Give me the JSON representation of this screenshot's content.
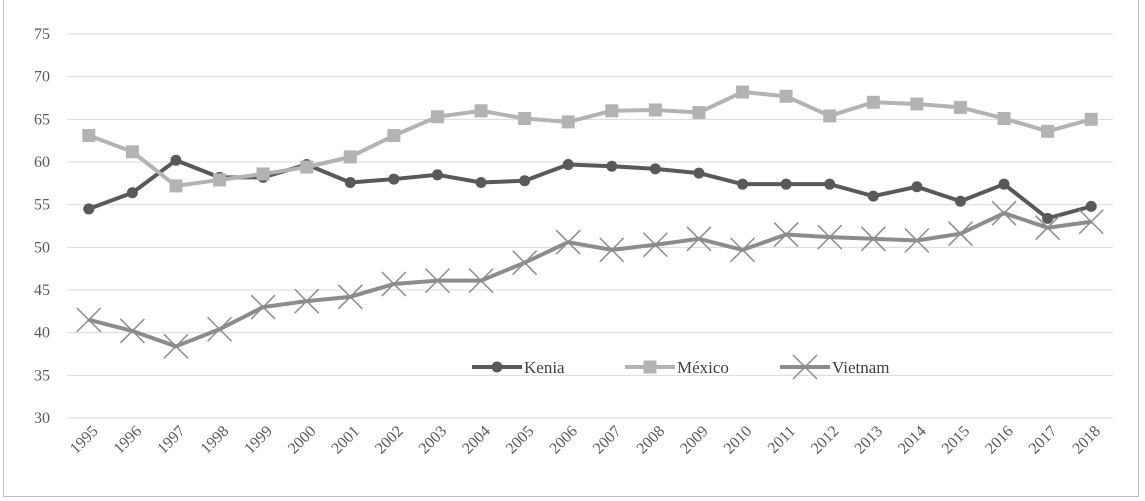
{
  "chart_data": {
    "type": "line",
    "title": "",
    "xlabel": "",
    "ylabel": "",
    "ylim": [
      30,
      75
    ],
    "yticks": [
      "30",
      "35",
      "40",
      "45",
      "50",
      "55",
      "60",
      "65",
      "70",
      "75"
    ],
    "categories": [
      "1995",
      "1996",
      "1997",
      "1998",
      "1999",
      "2000",
      "2001",
      "2002",
      "2003",
      "2004",
      "2005",
      "2006",
      "2007",
      "2008",
      "2009",
      "2010",
      "2011",
      "2012",
      "2013",
      "2014",
      "2015",
      "2016",
      "2017",
      "2018"
    ],
    "grid": true,
    "legend_position": "bottom-center",
    "series": [
      {
        "name": "Kenia",
        "color": "#595959",
        "marker": "circle",
        "values": [
          54.5,
          56.4,
          60.2,
          58.2,
          58.2,
          59.7,
          57.6,
          58.0,
          58.5,
          57.6,
          57.8,
          59.7,
          59.5,
          59.2,
          58.7,
          57.4,
          57.4,
          57.4,
          56.0,
          57.1,
          55.4,
          57.4,
          53.4,
          54.8
        ]
      },
      {
        "name": "México",
        "color": "#b3b3b3",
        "marker": "square",
        "values": [
          63.1,
          61.2,
          57.2,
          57.9,
          58.6,
          59.4,
          60.6,
          63.1,
          65.3,
          66.0,
          65.1,
          64.7,
          66.0,
          66.1,
          65.8,
          68.2,
          67.7,
          65.4,
          67.0,
          66.8,
          66.4,
          65.1,
          63.6,
          65.0
        ]
      },
      {
        "name": "Vietnam",
        "color": "#8c8c8c",
        "marker": "x",
        "values": [
          41.5,
          40.2,
          38.4,
          40.4,
          43.0,
          43.7,
          44.2,
          45.7,
          46.1,
          46.1,
          48.2,
          50.6,
          49.7,
          50.3,
          51.0,
          49.7,
          51.5,
          51.2,
          51.0,
          50.8,
          51.6,
          54.0,
          52.3,
          53.0
        ]
      }
    ]
  }
}
